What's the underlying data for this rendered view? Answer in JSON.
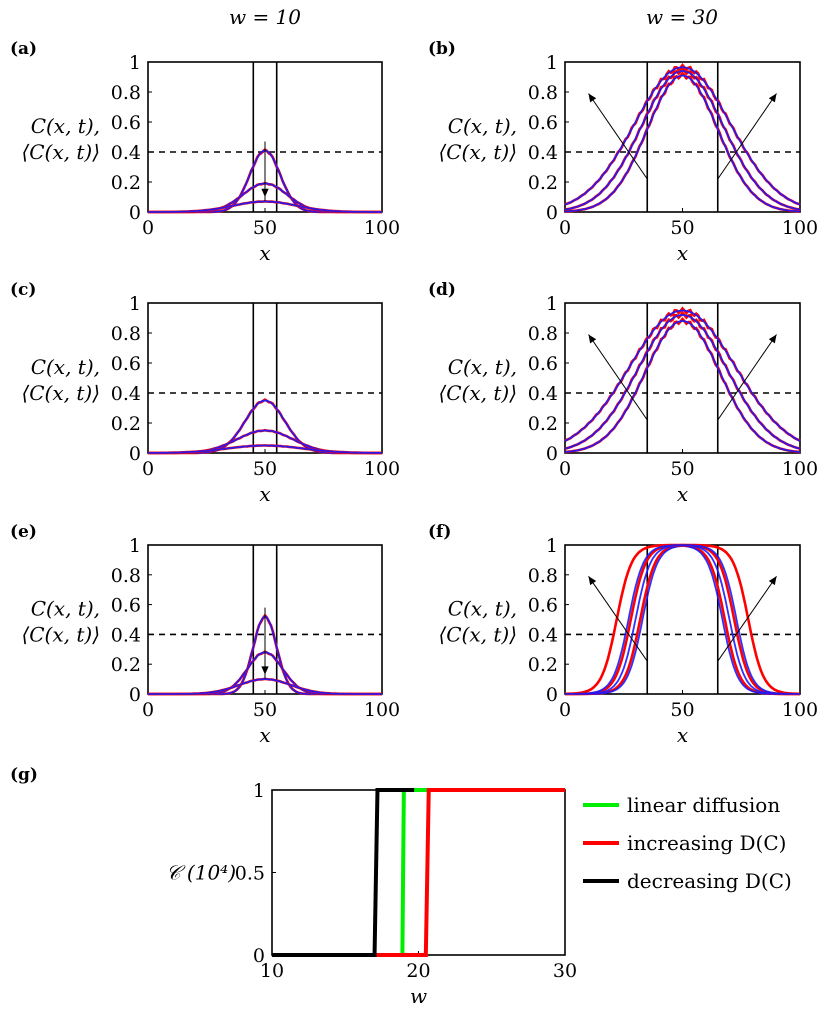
{
  "column_titles": [
    "w = 10",
    "w = 30"
  ],
  "colors": {
    "red": "#ff0000",
    "blue": "#1a1aff",
    "purple": "#6a1fc9",
    "green": "#00ee00",
    "black": "#000000"
  },
  "chart_data": [
    {
      "id": "a",
      "panel_label": "(a)",
      "type": "line",
      "xlabel": "x",
      "ylabel": [
        "C(x, t),",
        "⟨C(x, t)⟩"
      ],
      "xlim": [
        0,
        100
      ],
      "ylim": [
        0,
        1
      ],
      "xticks": [
        0,
        50,
        100
      ],
      "yticks": [
        0,
        0.2,
        0.4,
        0.6,
        0.8,
        1
      ],
      "vlines": [
        45,
        55
      ],
      "hline": 0.4,
      "grid": false,
      "arrow": "down-center",
      "series": [
        {
          "kind": "gaussian",
          "peaks": [
            0.41,
            0.19,
            0.07
          ],
          "sigmas": [
            6.5,
            9.5,
            13.5
          ]
        }
      ]
    },
    {
      "id": "b",
      "panel_label": "(b)",
      "type": "line",
      "xlabel": "x",
      "ylabel": [
        "C(x, t),",
        "⟨C(x, t)⟩"
      ],
      "xlim": [
        0,
        100
      ],
      "ylim": [
        0,
        1
      ],
      "xticks": [
        0,
        50,
        100
      ],
      "yticks": [
        0,
        0.2,
        0.4,
        0.6,
        0.8,
        1
      ],
      "vlines": [
        35,
        65
      ],
      "hline": 0.4,
      "grid": false,
      "arrow": "outward",
      "series": [
        {
          "kind": "plateau",
          "peaks": [
            0.91,
            0.94,
            0.965
          ],
          "sigmas": [
            15.0,
            17.5,
            20.5
          ]
        }
      ]
    },
    {
      "id": "c",
      "panel_label": "(c)",
      "type": "line",
      "xlabel": "x",
      "ylabel": [
        "C(x, t),",
        "⟨C(x, t)⟩"
      ],
      "xlim": [
        0,
        100
      ],
      "ylim": [
        0,
        1
      ],
      "xticks": [
        0,
        50,
        100
      ],
      "yticks": [
        0,
        0.2,
        0.4,
        0.6,
        0.8,
        1
      ],
      "vlines": [
        45,
        55
      ],
      "hline": 0.4,
      "grid": false,
      "arrow": "none",
      "series": [
        {
          "kind": "gaussian",
          "peaks": [
            0.35,
            0.15,
            0.05
          ],
          "sigmas": [
            8.5,
            12.0,
            16.0
          ]
        }
      ]
    },
    {
      "id": "d",
      "panel_label": "(d)",
      "type": "line",
      "xlabel": "x",
      "ylabel": [
        "C(x, t),",
        "⟨C(x, t)⟩"
      ],
      "xlim": [
        0,
        100
      ],
      "ylim": [
        0,
        1
      ],
      "xticks": [
        0,
        50,
        100
      ],
      "yticks": [
        0,
        0.2,
        0.4,
        0.6,
        0.8,
        1
      ],
      "vlines": [
        35,
        65
      ],
      "hline": 0.4,
      "grid": false,
      "arrow": "outward",
      "series": [
        {
          "kind": "plateau",
          "peaks": [
            0.88,
            0.92,
            0.95
          ],
          "sigmas": [
            16.0,
            19.0,
            22.5
          ]
        }
      ]
    },
    {
      "id": "e",
      "panel_label": "(e)",
      "type": "line",
      "xlabel": "x",
      "ylabel": [
        "C(x, t),",
        "⟨C(x, t)⟩"
      ],
      "xlim": [
        0,
        100
      ],
      "ylim": [
        0,
        1
      ],
      "xticks": [
        0,
        50,
        100
      ],
      "yticks": [
        0,
        0.2,
        0.4,
        0.6,
        0.8,
        1
      ],
      "vlines": [
        45,
        55
      ],
      "hline": 0.4,
      "grid": false,
      "arrow": "down-center",
      "series": [
        {
          "kind": "gaussian",
          "peaks": [
            0.52,
            0.28,
            0.1
          ],
          "sigmas": [
            5.0,
            7.5,
            11.0
          ]
        }
      ]
    },
    {
      "id": "f",
      "panel_label": "(f)",
      "type": "line",
      "xlabel": "x",
      "ylabel": [
        "C(x, t),",
        "⟨C(x, t)⟩"
      ],
      "xlim": [
        0,
        100
      ],
      "ylim": [
        0,
        1
      ],
      "xticks": [
        0,
        50,
        100
      ],
      "yticks": [
        0,
        0.2,
        0.4,
        0.6,
        0.8,
        1
      ],
      "vlines": [
        35,
        65
      ],
      "hline": 0.4,
      "grid": false,
      "arrow": "outward",
      "series": [
        {
          "kind": "flattop",
          "peaks": [
            1,
            1,
            1
          ],
          "halfwidths": [
            17,
            20,
            23
          ],
          "red_halfwidths": [
            18,
            22,
            28
          ]
        }
      ]
    },
    {
      "id": "g",
      "panel_label": "(g)",
      "type": "line",
      "xlabel": "w",
      "ylabel": [
        "𝒞 (10⁴)"
      ],
      "xlim": [
        10,
        30
      ],
      "ylim": [
        0,
        1
      ],
      "xticks": [
        10,
        20,
        30
      ],
      "yticks": [
        0,
        0.5,
        1
      ],
      "legend": "right",
      "series": [
        {
          "name": "linear diffusion",
          "color": "#00ee00",
          "x": [
            10,
            18.9,
            19.0,
            30
          ],
          "y": [
            0,
            0,
            1,
            1
          ]
        },
        {
          "name": "increasing D(C)",
          "color": "#ff0000",
          "x": [
            10,
            20.5,
            20.7,
            30
          ],
          "y": [
            0,
            0,
            1,
            1
          ]
        },
        {
          "name": "decreasing D(C)",
          "color": "#000000",
          "x": [
            10,
            17.0,
            17.2,
            19.7
          ],
          "y": [
            0,
            0,
            1,
            1
          ]
        }
      ]
    }
  ]
}
